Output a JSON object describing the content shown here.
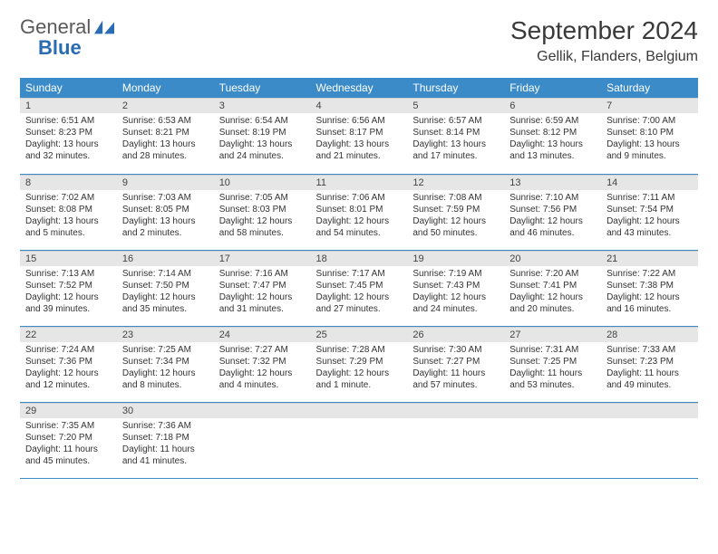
{
  "logo": {
    "word1": "General",
    "word2": "Blue"
  },
  "title": "September 2024",
  "location": "Gellik, Flanders, Belgium",
  "colors": {
    "header_bg": "#3b8bc9",
    "header_text": "#ffffff",
    "daynum_bg": "#e6e6e6",
    "row_border": "#3b8bc9",
    "logo_gray": "#5a5a5a",
    "logo_blue": "#2a6cb4"
  },
  "typography": {
    "title_fontsize": 28,
    "location_fontsize": 16,
    "weekday_fontsize": 12,
    "daynum_fontsize": 11,
    "body_fontsize": 10
  },
  "weekdays": [
    "Sunday",
    "Monday",
    "Tuesday",
    "Wednesday",
    "Thursday",
    "Friday",
    "Saturday"
  ],
  "weeks": [
    [
      {
        "n": "1",
        "sr": "Sunrise: 6:51 AM",
        "ss": "Sunset: 8:23 PM",
        "dl": "Daylight: 13 hours and 32 minutes."
      },
      {
        "n": "2",
        "sr": "Sunrise: 6:53 AM",
        "ss": "Sunset: 8:21 PM",
        "dl": "Daylight: 13 hours and 28 minutes."
      },
      {
        "n": "3",
        "sr": "Sunrise: 6:54 AM",
        "ss": "Sunset: 8:19 PM",
        "dl": "Daylight: 13 hours and 24 minutes."
      },
      {
        "n": "4",
        "sr": "Sunrise: 6:56 AM",
        "ss": "Sunset: 8:17 PM",
        "dl": "Daylight: 13 hours and 21 minutes."
      },
      {
        "n": "5",
        "sr": "Sunrise: 6:57 AM",
        "ss": "Sunset: 8:14 PM",
        "dl": "Daylight: 13 hours and 17 minutes."
      },
      {
        "n": "6",
        "sr": "Sunrise: 6:59 AM",
        "ss": "Sunset: 8:12 PM",
        "dl": "Daylight: 13 hours and 13 minutes."
      },
      {
        "n": "7",
        "sr": "Sunrise: 7:00 AM",
        "ss": "Sunset: 8:10 PM",
        "dl": "Daylight: 13 hours and 9 minutes."
      }
    ],
    [
      {
        "n": "8",
        "sr": "Sunrise: 7:02 AM",
        "ss": "Sunset: 8:08 PM",
        "dl": "Daylight: 13 hours and 5 minutes."
      },
      {
        "n": "9",
        "sr": "Sunrise: 7:03 AM",
        "ss": "Sunset: 8:05 PM",
        "dl": "Daylight: 13 hours and 2 minutes."
      },
      {
        "n": "10",
        "sr": "Sunrise: 7:05 AM",
        "ss": "Sunset: 8:03 PM",
        "dl": "Daylight: 12 hours and 58 minutes."
      },
      {
        "n": "11",
        "sr": "Sunrise: 7:06 AM",
        "ss": "Sunset: 8:01 PM",
        "dl": "Daylight: 12 hours and 54 minutes."
      },
      {
        "n": "12",
        "sr": "Sunrise: 7:08 AM",
        "ss": "Sunset: 7:59 PM",
        "dl": "Daylight: 12 hours and 50 minutes."
      },
      {
        "n": "13",
        "sr": "Sunrise: 7:10 AM",
        "ss": "Sunset: 7:56 PM",
        "dl": "Daylight: 12 hours and 46 minutes."
      },
      {
        "n": "14",
        "sr": "Sunrise: 7:11 AM",
        "ss": "Sunset: 7:54 PM",
        "dl": "Daylight: 12 hours and 43 minutes."
      }
    ],
    [
      {
        "n": "15",
        "sr": "Sunrise: 7:13 AM",
        "ss": "Sunset: 7:52 PM",
        "dl": "Daylight: 12 hours and 39 minutes."
      },
      {
        "n": "16",
        "sr": "Sunrise: 7:14 AM",
        "ss": "Sunset: 7:50 PM",
        "dl": "Daylight: 12 hours and 35 minutes."
      },
      {
        "n": "17",
        "sr": "Sunrise: 7:16 AM",
        "ss": "Sunset: 7:47 PM",
        "dl": "Daylight: 12 hours and 31 minutes."
      },
      {
        "n": "18",
        "sr": "Sunrise: 7:17 AM",
        "ss": "Sunset: 7:45 PM",
        "dl": "Daylight: 12 hours and 27 minutes."
      },
      {
        "n": "19",
        "sr": "Sunrise: 7:19 AM",
        "ss": "Sunset: 7:43 PM",
        "dl": "Daylight: 12 hours and 24 minutes."
      },
      {
        "n": "20",
        "sr": "Sunrise: 7:20 AM",
        "ss": "Sunset: 7:41 PM",
        "dl": "Daylight: 12 hours and 20 minutes."
      },
      {
        "n": "21",
        "sr": "Sunrise: 7:22 AM",
        "ss": "Sunset: 7:38 PM",
        "dl": "Daylight: 12 hours and 16 minutes."
      }
    ],
    [
      {
        "n": "22",
        "sr": "Sunrise: 7:24 AM",
        "ss": "Sunset: 7:36 PM",
        "dl": "Daylight: 12 hours and 12 minutes."
      },
      {
        "n": "23",
        "sr": "Sunrise: 7:25 AM",
        "ss": "Sunset: 7:34 PM",
        "dl": "Daylight: 12 hours and 8 minutes."
      },
      {
        "n": "24",
        "sr": "Sunrise: 7:27 AM",
        "ss": "Sunset: 7:32 PM",
        "dl": "Daylight: 12 hours and 4 minutes."
      },
      {
        "n": "25",
        "sr": "Sunrise: 7:28 AM",
        "ss": "Sunset: 7:29 PM",
        "dl": "Daylight: 12 hours and 1 minute."
      },
      {
        "n": "26",
        "sr": "Sunrise: 7:30 AM",
        "ss": "Sunset: 7:27 PM",
        "dl": "Daylight: 11 hours and 57 minutes."
      },
      {
        "n": "27",
        "sr": "Sunrise: 7:31 AM",
        "ss": "Sunset: 7:25 PM",
        "dl": "Daylight: 11 hours and 53 minutes."
      },
      {
        "n": "28",
        "sr": "Sunrise: 7:33 AM",
        "ss": "Sunset: 7:23 PM",
        "dl": "Daylight: 11 hours and 49 minutes."
      }
    ],
    [
      {
        "n": "29",
        "sr": "Sunrise: 7:35 AM",
        "ss": "Sunset: 7:20 PM",
        "dl": "Daylight: 11 hours and 45 minutes."
      },
      {
        "n": "30",
        "sr": "Sunrise: 7:36 AM",
        "ss": "Sunset: 7:18 PM",
        "dl": "Daylight: 11 hours and 41 minutes."
      },
      {
        "n": "",
        "sr": "",
        "ss": "",
        "dl": ""
      },
      {
        "n": "",
        "sr": "",
        "ss": "",
        "dl": ""
      },
      {
        "n": "",
        "sr": "",
        "ss": "",
        "dl": ""
      },
      {
        "n": "",
        "sr": "",
        "ss": "",
        "dl": ""
      },
      {
        "n": "",
        "sr": "",
        "ss": "",
        "dl": ""
      }
    ]
  ]
}
